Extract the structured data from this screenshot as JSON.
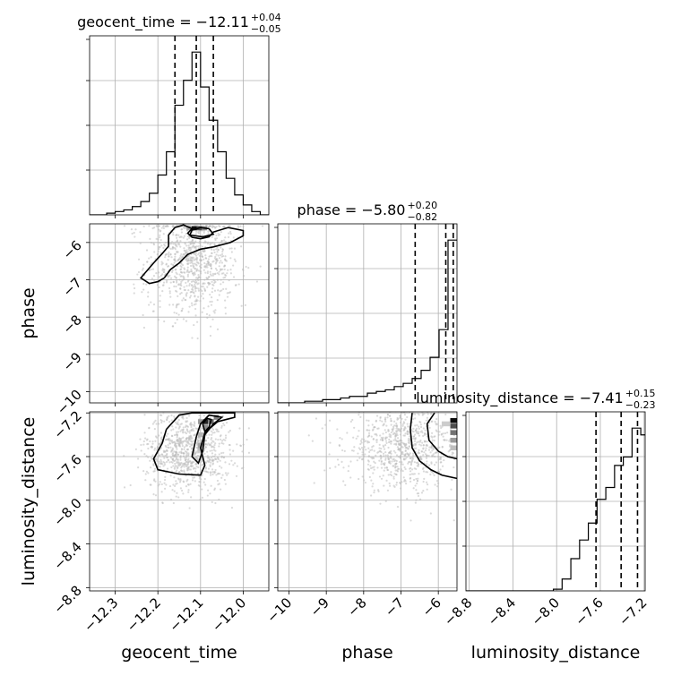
{
  "chart_data": {
    "type": "corner",
    "parameters": [
      "geocent_time",
      "phase",
      "luminosity_distance"
    ],
    "axis_labels": {
      "geocent_time": "geocent_time",
      "phase": "phase",
      "luminosity_distance": "luminosity_distance"
    },
    "titles": [
      {
        "param": "geocent_time",
        "text": "geocent_time = −12.11",
        "sup": "+0.04",
        "sub": "−0.05"
      },
      {
        "param": "phase",
        "text": "phase = −5.80",
        "sup": "+0.20",
        "sub": "−0.82"
      },
      {
        "param": "luminosity_distance",
        "text": "luminosity_distance = −7.41",
        "sup": "+0.15",
        "sub": "−0.23"
      }
    ],
    "ranges": {
      "geocent_time": [
        -12.36,
        -11.94
      ],
      "phase": [
        -10.3,
        -5.5
      ],
      "luminosity_distance": [
        -8.83,
        -7.19
      ]
    },
    "ticks": {
      "geocent_time": [
        -12.3,
        -12.2,
        -12.1,
        -12.0
      ],
      "phase": [
        -10,
        -9,
        -8,
        -7,
        -6
      ],
      "luminosity_distance": [
        -8.8,
        -8.4,
        -8.0,
        -7.6,
        -7.2
      ]
    },
    "tick_labels": {
      "geocent_time": [
        "−12.3",
        "−12.2",
        "−12.1",
        "−12.0"
      ],
      "phase": [
        "−10",
        "−9",
        "−8",
        "−7",
        "−6"
      ],
      "luminosity_distance": [
        "−8.8",
        "−8.4",
        "−8.0",
        "−7.6",
        "−7.2"
      ]
    },
    "quantiles": {
      "geocent_time": [
        -12.16,
        -12.11,
        -12.07
      ],
      "phase": [
        -6.62,
        -5.8,
        -5.6
      ],
      "luminosity_distance": [
        -7.64,
        -7.41,
        -7.26
      ]
    },
    "histograms": {
      "geocent_time": {
        "edges": [
          -12.36,
          -12.34,
          -12.32,
          -12.3,
          -12.28,
          -12.26,
          -12.24,
          -12.22,
          -12.2,
          -12.18,
          -12.16,
          -12.14,
          -12.12,
          -12.1,
          -12.08,
          -12.06,
          -12.04,
          -12.02,
          -12.0,
          -11.98,
          -11.96,
          -11.94
        ],
        "counts": [
          0,
          0,
          1,
          2,
          3,
          5,
          8,
          13,
          24,
          38,
          66,
          81,
          98,
          77,
          57,
          38,
          22,
          12,
          6,
          2,
          0
        ]
      },
      "phase": {
        "edges": [
          -10.3,
          -10.06,
          -9.82,
          -9.58,
          -9.34,
          -9.1,
          -8.86,
          -8.62,
          -8.38,
          -8.14,
          -7.9,
          -7.66,
          -7.42,
          -7.18,
          -6.94,
          -6.7,
          -6.46,
          -6.22,
          -5.98,
          -5.74,
          -5.5
        ],
        "counts": [
          0,
          0,
          0,
          1,
          1,
          2,
          2,
          3,
          4,
          4,
          6,
          7,
          8,
          10,
          12,
          15,
          20,
          28,
          45,
          100
        ]
      },
      "luminosity_distance": {
        "edges": [
          -8.83,
          -8.75,
          -8.67,
          -8.59,
          -8.51,
          -8.43,
          -8.35,
          -8.27,
          -8.19,
          -8.11,
          -8.03,
          -7.95,
          -7.87,
          -7.79,
          -7.71,
          -7.63,
          -7.55,
          -7.47,
          -7.39,
          -7.31,
          -7.23,
          -7.19
        ],
        "counts": [
          0,
          0,
          0,
          0,
          0,
          0,
          0,
          0,
          0,
          0,
          1,
          7,
          19,
          30,
          40,
          54,
          61,
          74,
          79,
          96,
          92
        ]
      }
    },
    "contours": [
      {
        "x": "geocent_time",
        "y": "phase",
        "levels": [
          [
            [
              -12.185,
              -6.95
            ],
            [
              -12.17,
              -6.72
            ],
            [
              -12.15,
              -6.55
            ],
            [
              -12.13,
              -6.32
            ],
            [
              -12.1,
              -6.18
            ],
            [
              -12.07,
              -6.12
            ],
            [
              -12.03,
              -6.0
            ],
            [
              -12.0,
              -5.82
            ],
            [
              -12.0,
              -5.68
            ],
            [
              -12.035,
              -5.6
            ],
            [
              -12.07,
              -5.72
            ],
            [
              -12.08,
              -5.85
            ],
            [
              -12.1,
              -5.9
            ],
            [
              -12.12,
              -5.86
            ],
            [
              -12.13,
              -5.75
            ],
            [
              -12.12,
              -5.63
            ],
            [
              -12.14,
              -5.53
            ],
            [
              -12.16,
              -5.6
            ],
            [
              -12.175,
              -5.8
            ],
            [
              -12.175,
              -6.1
            ],
            [
              -12.19,
              -6.3
            ],
            [
              -12.21,
              -6.55
            ],
            [
              -12.24,
              -6.95
            ],
            [
              -12.22,
              -7.1
            ],
            [
              -12.2,
              -7.05
            ],
            [
              -12.185,
              -6.95
            ]
          ],
          [
            [
              -12.08,
              -5.63
            ],
            [
              -12.07,
              -5.78
            ],
            [
              -12.095,
              -5.85
            ],
            [
              -12.125,
              -5.8
            ],
            [
              -12.12,
              -5.67
            ],
            [
              -12.1,
              -5.6
            ],
            [
              -12.08,
              -5.63
            ]
          ]
        ],
        "density": [
          {
            "x": -12.115,
            "y": -5.62,
            "w": 0.012,
            "h": 0.11,
            "v": 0.95
          },
          {
            "x": -12.103,
            "y": -5.62,
            "w": 0.012,
            "h": 0.11,
            "v": 0.7
          },
          {
            "x": -12.091,
            "y": -5.62,
            "w": 0.012,
            "h": 0.11,
            "v": 0.45
          },
          {
            "x": -12.127,
            "y": -5.62,
            "w": 0.012,
            "h": 0.11,
            "v": 0.35
          }
        ]
      },
      {
        "x": "geocent_time",
        "y": "luminosity_distance",
        "levels": [
          [
            [
              -12.18,
              -7.35
            ],
            [
              -12.19,
              -7.48
            ],
            [
              -12.21,
              -7.62
            ],
            [
              -12.2,
              -7.72
            ],
            [
              -12.15,
              -7.76
            ],
            [
              -12.1,
              -7.77
            ],
            [
              -12.09,
              -7.68
            ],
            [
              -12.1,
              -7.52
            ],
            [
              -12.09,
              -7.38
            ],
            [
              -12.06,
              -7.28
            ],
            [
              -12.02,
              -7.24
            ],
            [
              -12.02,
              -7.2
            ],
            [
              -12.12,
              -7.2
            ],
            [
              -12.15,
              -7.22
            ],
            [
              -12.18,
              -7.35
            ]
          ],
          [
            [
              -12.11,
              -7.42
            ],
            [
              -12.12,
              -7.6
            ],
            [
              -12.105,
              -7.66
            ],
            [
              -12.095,
              -7.55
            ],
            [
              -12.09,
              -7.4
            ],
            [
              -12.07,
              -7.3
            ],
            [
              -12.05,
              -7.24
            ],
            [
              -12.08,
              -7.22
            ],
            [
              -12.1,
              -7.3
            ],
            [
              -12.11,
              -7.42
            ]
          ],
          [
            [
              -12.095,
              -7.3
            ],
            [
              -12.09,
              -7.37
            ],
            [
              -12.08,
              -7.33
            ],
            [
              -12.075,
              -7.26
            ],
            [
              -12.085,
              -7.25
            ],
            [
              -12.095,
              -7.3
            ]
          ]
        ],
        "density": [
          {
            "x": -12.088,
            "y": -7.28,
            "w": 0.012,
            "h": 0.045,
            "v": 0.85
          },
          {
            "x": -12.075,
            "y": -7.28,
            "w": 0.012,
            "h": 0.045,
            "v": 0.6
          },
          {
            "x": -12.1,
            "y": -7.28,
            "w": 0.012,
            "h": 0.045,
            "v": 0.4
          },
          {
            "x": -12.088,
            "y": -7.33,
            "w": 0.012,
            "h": 0.045,
            "v": 0.45
          },
          {
            "x": -12.063,
            "y": -7.24,
            "w": 0.012,
            "h": 0.045,
            "v": 0.5
          },
          {
            "x": -12.1,
            "y": -7.4,
            "w": 0.012,
            "h": 0.045,
            "v": 0.3
          },
          {
            "x": -12.1,
            "y": -7.5,
            "w": 0.012,
            "h": 0.045,
            "v": 0.35
          }
        ]
      },
      {
        "x": "phase",
        "y": "luminosity_distance",
        "levels": [
          [
            [
              -6.7,
              -7.2
            ],
            [
              -6.75,
              -7.35
            ],
            [
              -6.7,
              -7.52
            ],
            [
              -6.5,
              -7.64
            ],
            [
              -6.2,
              -7.72
            ],
            [
              -5.9,
              -7.77
            ],
            [
              -5.5,
              -7.8
            ]
          ],
          [
            [
              -6.1,
              -7.2
            ],
            [
              -6.3,
              -7.3
            ],
            [
              -6.25,
              -7.45
            ],
            [
              -6.0,
              -7.55
            ],
            [
              -5.75,
              -7.6
            ],
            [
              -5.5,
              -7.62
            ]
          ]
        ],
        "density": [
          {
            "x": -5.57,
            "y": -7.27,
            "w": 0.22,
            "h": 0.045,
            "v": 0.95
          },
          {
            "x": -5.57,
            "y": -7.32,
            "w": 0.22,
            "h": 0.045,
            "v": 0.7
          },
          {
            "x": -5.57,
            "y": -7.38,
            "w": 0.22,
            "h": 0.045,
            "v": 0.55
          },
          {
            "x": -5.57,
            "y": -7.45,
            "w": 0.22,
            "h": 0.045,
            "v": 0.4
          },
          {
            "x": -5.57,
            "y": -7.52,
            "w": 0.22,
            "h": 0.045,
            "v": 0.25
          },
          {
            "x": -5.8,
            "y": -7.3,
            "w": 0.22,
            "h": 0.045,
            "v": 0.2
          }
        ]
      }
    ],
    "scatter_centers": [
      {
        "x": "geocent_time",
        "y": "phase",
        "cx": -12.12,
        "cy": -6.5,
        "sx": 0.055,
        "sy": 0.75,
        "n": 900
      },
      {
        "x": "geocent_time",
        "y": "luminosity_distance",
        "cx": -12.13,
        "cy": -7.55,
        "sx": 0.05,
        "sy": 0.18,
        "n": 900
      },
      {
        "x": "phase",
        "y": "luminosity_distance",
        "cx": -6.9,
        "cy": -7.5,
        "sx": 0.8,
        "sy": 0.2,
        "n": 900
      }
    ],
    "grid": true
  }
}
